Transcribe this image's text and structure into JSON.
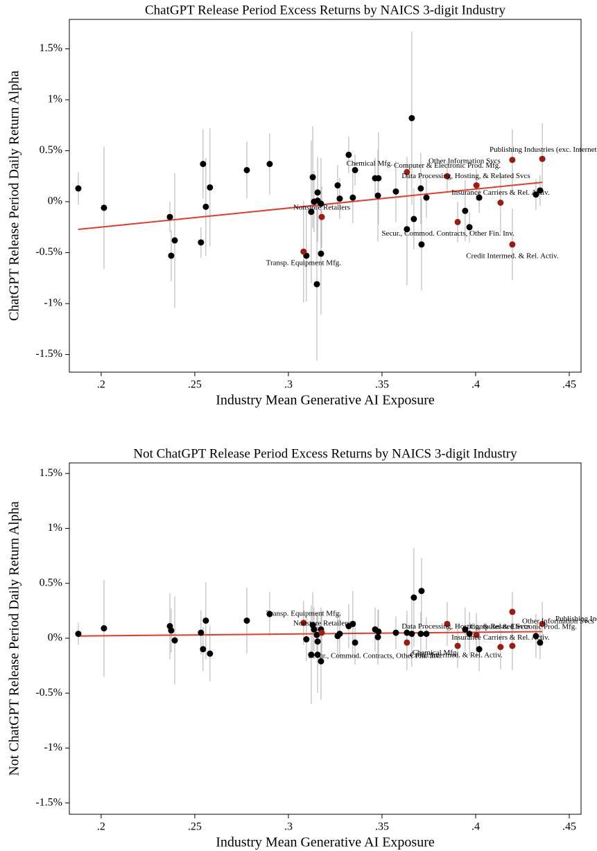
{
  "chart_data": [
    {
      "type": "scatter",
      "title": "ChatGPT Release Period Excess Returns by NAICS 3-digit Industry",
      "x_label": "Industry Mean Generative AI Exposure",
      "y_label": "ChatGPT Release Period Daily Return Alpha",
      "xlim": [
        0.183,
        0.4563
      ],
      "ylim": [
        -1.673,
        1.789
      ],
      "xticks": [
        {
          "value": 0.2,
          "label": ".2"
        },
        {
          "value": 0.25,
          "label": ".25"
        },
        {
          "value": 0.3,
          "label": ".3"
        },
        {
          "value": 0.35,
          "label": ".35"
        },
        {
          "value": 0.4,
          "label": ".4"
        },
        {
          "value": 0.45,
          "label": ".45"
        }
      ],
      "yticks": [
        {
          "value": -1.5,
          "label": "-1.5%"
        },
        {
          "value": -1,
          "label": "-1%"
        },
        {
          "value": -0.5,
          "label": "-0.5%"
        },
        {
          "value": 0,
          "label": "0%"
        },
        {
          "value": 0.5,
          "label": "0.5%"
        },
        {
          "value": 1,
          "label": "1%"
        },
        {
          "value": 1.5,
          "label": "1.5%"
        }
      ],
      "series": [
        {
          "color": "#000000",
          "x": [
            0.1878,
            0.2015,
            0.2367,
            0.2374,
            0.2393,
            0.2533,
            0.2544,
            0.2559,
            0.2581,
            0.2778,
            0.29,
            0.3096,
            0.3122,
            0.313,
            0.3137,
            0.3156,
            0.3156,
            0.3152,
            0.3174,
            0.3174,
            0.3263,
            0.3274,
            0.3322,
            0.3344,
            0.3356,
            0.3463,
            0.3481,
            0.3478,
            0.3574,
            0.3633,
            0.3659,
            0.367,
            0.3707,
            0.3711,
            0.3737,
            0.3944,
            0.3967,
            0.4019,
            0.4322,
            0.4344
          ],
          "values": [
            0.13,
            -0.06,
            -0.15,
            -0.53,
            -0.38,
            -0.4,
            0.37,
            -0.05,
            0.14,
            0.31,
            0.37,
            -0.53,
            -0.1,
            0.24,
            0.0,
            0.09,
            0.01,
            -0.81,
            -0.02,
            -0.51,
            0.16,
            0.03,
            0.46,
            0.04,
            0.31,
            0.23,
            0.23,
            0.06,
            0.1,
            -0.27,
            0.82,
            -0.17,
            0.13,
            -0.42,
            0.04,
            -0.09,
            -0.25,
            0.04,
            0.07,
            0.11
          ],
          "errors": [
            0.16,
            0.6,
            0.15,
            0.25,
            0.66,
            0.15,
            0.34,
            0.48,
            0.58,
            0.28,
            0.3,
            0.45,
            0.7,
            0.5,
            0.3,
            0.35,
            0.4,
            0.75,
            0.45,
            0.6,
            0.2,
            0.2,
            0.18,
            0.25,
            0.15,
            0.2,
            0.45,
            0.45,
            0.3,
            0.55,
            0.85,
            0.3,
            0.35,
            0.45,
            0.2,
            0.3,
            0.15,
            0.15,
            0.15,
            0.15
          ]
        },
        {
          "color": "#9b1c10",
          "x": [
            0.3178,
            0.3081,
            0.3633,
            0.4004,
            0.3848,
            0.4196,
            0.4356,
            0.4133,
            0.3904,
            0.4196
          ],
          "values": [
            -0.15,
            -0.49,
            0.29,
            0.16,
            0.25,
            0.41,
            0.42,
            -0.01,
            -0.2,
            -0.42
          ],
          "errors": [
            0.3,
            0.5,
            0.15,
            0.15,
            0.15,
            0.3,
            0.35,
            0.3,
            0.2,
            0.35
          ],
          "labels": [
            "Nonstore Retailers",
            "Transp. Equipment Mfg.",
            "Chemical Mfg.",
            "Computer & Electronic Prod. Mfg.",
            "Data Processing, Hosting, & Related Svcs",
            "Other Information Svcs",
            "Publishing Industries (exc. Internet)",
            "Insurance Carriers & Rel. Activ.",
            "Secur., Commod. Contracts, Other Fin. Inv.",
            "Credit Intermed. & Rel. Activ."
          ]
        }
      ],
      "fit": {
        "color": "#e8392a",
        "x": [
          0.1878,
          0.4356
        ],
        "values": [
          -0.272,
          0.19
        ]
      }
    },
    {
      "type": "scatter",
      "title": "Not ChatGPT Release Period Excess Returns by NAICS 3-digit Industry",
      "x_label": "Industry Mean Generative AI Exposure",
      "y_label": "Not ChatGPT Release Period Daily Return Alpha",
      "xlim": [
        0.183,
        0.4563
      ],
      "ylim": [
        -1.603,
        1.596
      ],
      "xticks": [
        {
          "value": 0.2,
          "label": ".2"
        },
        {
          "value": 0.25,
          "label": ".25"
        },
        {
          "value": 0.3,
          "label": ".3"
        },
        {
          "value": 0.35,
          "label": ".35"
        },
        {
          "value": 0.4,
          "label": ".4"
        },
        {
          "value": 0.45,
          "label": ".45"
        }
      ],
      "yticks": [
        {
          "value": -1.5,
          "label": "-1.5%"
        },
        {
          "value": -1,
          "label": "-1%"
        },
        {
          "value": -0.5,
          "label": "-0.5%"
        },
        {
          "value": 0,
          "label": "0%"
        },
        {
          "value": 0.5,
          "label": "0.5%"
        },
        {
          "value": 1,
          "label": "1%"
        },
        {
          "value": 1.5,
          "label": "1.5%"
        }
      ],
      "series": [
        {
          "color": "#000000",
          "x": [
            0.1878,
            0.2015,
            0.2367,
            0.2374,
            0.2393,
            0.2533,
            0.2544,
            0.2559,
            0.2581,
            0.2778,
            0.29,
            0.3096,
            0.3122,
            0.313,
            0.3137,
            0.3156,
            0.3156,
            0.3152,
            0.3174,
            0.3174,
            0.3263,
            0.3274,
            0.3322,
            0.3344,
            0.3356,
            0.3463,
            0.3481,
            0.3478,
            0.3574,
            0.3633,
            0.3659,
            0.367,
            0.3707,
            0.3711,
            0.3737,
            0.3944,
            0.3967,
            0.4019,
            0.4322,
            0.4344
          ],
          "values": [
            0.04,
            0.09,
            0.11,
            0.07,
            -0.02,
            0.05,
            -0.1,
            0.16,
            -0.14,
            0.16,
            0.22,
            -0.01,
            -0.15,
            0.12,
            0.08,
            -0.15,
            -0.03,
            0.03,
            0.08,
            -0.21,
            0.02,
            0.04,
            0.11,
            0.13,
            -0.04,
            0.08,
            0.06,
            0.01,
            0.05,
            0.05,
            0.04,
            0.37,
            0.04,
            0.43,
            0.04,
            0.08,
            0.04,
            -0.1,
            0.02,
            -0.04
          ],
          "errors": [
            0.1,
            0.44,
            0.3,
            0.2,
            0.4,
            0.2,
            0.2,
            0.35,
            0.25,
            0.3,
            0.2,
            0.2,
            0.45,
            0.3,
            0.2,
            0.35,
            0.25,
            0.2,
            0.2,
            0.35,
            0.2,
            0.2,
            0.2,
            0.3,
            0.2,
            0.2,
            0.2,
            0.25,
            0.15,
            0.2,
            0.3,
            0.45,
            0.2,
            0.3,
            0.15,
            0.2,
            0.2,
            0.2,
            0.2,
            0.15
          ]
        },
        {
          "color": "#9b1c10",
          "x": [
            0.3178,
            0.3081,
            0.3633,
            0.4004,
            0.3848,
            0.4196,
            0.4356,
            0.4133,
            0.3904,
            0.4196
          ],
          "values": [
            0.05,
            0.14,
            -0.04,
            0.03,
            0.13,
            0.24,
            0.13,
            -0.08,
            -0.07,
            -0.07
          ],
          "errors": [
            0.2,
            0.2,
            0.25,
            0.2,
            0.2,
            0.18,
            0.2,
            0.2,
            0.2,
            0.22
          ],
          "labels": [
            "Nonstore Retailers",
            "Transp. Equipment Mfg.",
            "Chemical Mfg.",
            "Computer & Electronic Prod. Mfg.",
            "Data Processing, Hosting, & Related Svcs",
            "Other Information Svcs",
            "Publishing Industries (exc. Internet)",
            "Insurance Carriers & Rel. Activ.",
            "Secur., Commod. Contracts, Other Fin. Inv.",
            "Credit Intermed. & Rel. Activ."
          ]
        }
      ],
      "fit": {
        "color": "#e8392a",
        "x": [
          0.1878,
          0.4356
        ],
        "values": [
          0.02,
          0.06
        ]
      }
    }
  ]
}
